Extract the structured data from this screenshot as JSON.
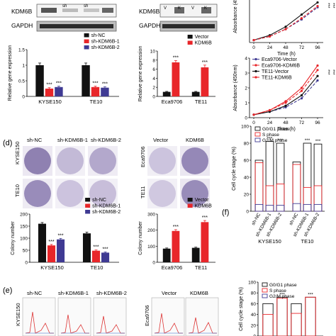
{
  "panel_labels": [
    "(d)",
    "(e)",
    "(f)"
  ],
  "western_blots": [
    {
      "rows": [
        "KDM6B",
        "GAPDH"
      ],
      "lanes": [
        "",
        "sh",
        "sh",
        ""
      ]
    },
    {
      "rows": [
        "KDM6B",
        "GAPDH"
      ],
      "lanes": [
        "V",
        "K",
        "V",
        "K"
      ]
    }
  ],
  "colony_images": {
    "left": {
      "headers": [
        "sh-NC",
        "sh-KDM6B-1",
        "sh-KDM6B-2"
      ],
      "rows": [
        "KYSE150",
        "TE10"
      ]
    },
    "right": {
      "headers": [
        "Vector",
        "KDM6B"
      ],
      "rows": [
        "Eca9706",
        "TE11"
      ]
    }
  },
  "flow_images": {
    "left": {
      "headers": [
        "sh-NC",
        "sh-KDM6B-1",
        "sh-KDM6B-2"
      ],
      "rows": [
        "KYSE150"
      ]
    },
    "right": {
      "headers": [
        "Vector",
        "KDM6B"
      ],
      "rows": [
        "Eca9706"
      ]
    }
  },
  "colors": {
    "black": "#111111",
    "red": "#e8262a",
    "blue": "#3f3a93",
    "dark": "#1a1a1a"
  },
  "chart_data": [
    {
      "id": "expr-sh",
      "type": "bar",
      "ylabel": "Relative gene expression",
      "ylim": [
        0,
        1.5
      ],
      "yticks": [
        0,
        0.5,
        1.0,
        1.5
      ],
      "categories": [
        "KYSE150",
        "TE10"
      ],
      "legend": [
        "sh-NC",
        "sh-KDM6B-1",
        "sh-KDM6B-2"
      ],
      "series": [
        {
          "name": "sh-NC",
          "values": [
            1.0,
            1.0
          ],
          "err": [
            0.07,
            0.07
          ]
        },
        {
          "name": "sh-KDM6B-1",
          "values": [
            0.25,
            0.3
          ],
          "err": [
            0.03,
            0.03
          ]
        },
        {
          "name": "sh-KDM6B-2",
          "values": [
            0.3,
            0.28
          ],
          "err": [
            0.03,
            0.03
          ]
        }
      ],
      "annotations": [
        "***",
        "***",
        "***",
        "***"
      ]
    },
    {
      "id": "expr-oe",
      "type": "bar",
      "ylabel": "Relative gene expression",
      "ylim": [
        0,
        10
      ],
      "yticks": [
        0,
        2,
        4,
        6,
        8,
        10
      ],
      "categories": [
        "Eca9706",
        "TE11"
      ],
      "legend": [
        "Vector",
        "KDM6B"
      ],
      "series": [
        {
          "name": "Vector",
          "values": [
            1.0,
            1.0
          ],
          "err": [
            0.1,
            0.1
          ]
        },
        {
          "name": "KDM6B",
          "values": [
            7.5,
            6.4
          ],
          "err": [
            0.4,
            0.5
          ]
        }
      ],
      "annotations": [
        "***",
        "***"
      ]
    },
    {
      "id": "growth-top",
      "type": "line",
      "ylabel": "Absorbance (45",
      "xlabel": "Time (h)",
      "x": [
        0,
        24,
        48,
        72,
        96
      ],
      "xticks": [
        0,
        24,
        48,
        72,
        96
      ],
      "ylim": [
        0,
        3.5
      ],
      "series": [
        {
          "values": [
            0.2,
            0.6,
            1.3,
            2.3,
            3.3
          ]
        },
        {
          "values": [
            0.2,
            0.5,
            1.1,
            1.9,
            2.9
          ]
        },
        {
          "values": [
            0.2,
            0.5,
            1.1,
            2.0,
            3.0
          ]
        }
      ],
      "annotations": [
        "***",
        "***"
      ]
    },
    {
      "id": "growth-bottom",
      "type": "line",
      "ylabel": "Absorbance (450nm)",
      "xlabel": "Time (h)",
      "x": [
        0,
        24,
        48,
        72,
        96
      ],
      "xticks": [
        0,
        24,
        48,
        72,
        96
      ],
      "ylim": [
        0,
        4
      ],
      "yticks": [
        0,
        1,
        2,
        3,
        4
      ],
      "series": [
        {
          "name": "Eca9706-Vector",
          "values": [
            0.2,
            0.4,
            0.7,
            1.3,
            2.5
          ]
        },
        {
          "name": "Eca9706-KDM6B",
          "values": [
            0.2,
            0.5,
            1.0,
            1.8,
            3.2
          ]
        },
        {
          "name": "TE11-Vector",
          "values": [
            0.2,
            0.4,
            0.8,
            1.5,
            2.8
          ]
        },
        {
          "name": "TE11-KDM6B",
          "values": [
            0.2,
            0.5,
            1.1,
            2.0,
            3.5
          ]
        }
      ],
      "annotations": [
        "***",
        "***"
      ]
    },
    {
      "id": "colony-sh",
      "type": "bar",
      "ylabel": "Colony number",
      "ylim": [
        0,
        200
      ],
      "yticks": [
        0,
        50,
        100,
        150,
        200
      ],
      "categories": [
        "KYSE150",
        "TE10"
      ],
      "legend": [
        "sh-NC",
        "sh-KDM6B-1",
        "sh-KDM6B-2"
      ],
      "series": [
        {
          "name": "sh-NC",
          "values": [
            160,
            120
          ],
          "err": [
            5,
            5
          ]
        },
        {
          "name": "sh-KDM6B-1",
          "values": [
            70,
            48
          ],
          "err": [
            4,
            3
          ]
        },
        {
          "name": "sh-KDM6B-2",
          "values": [
            95,
            40
          ],
          "err": [
            4,
            3
          ]
        }
      ],
      "annotations": [
        "***",
        "***",
        "***",
        "***"
      ]
    },
    {
      "id": "colony-oe",
      "type": "bar",
      "ylabel": "Colony number",
      "ylim": [
        0,
        300
      ],
      "yticks": [
        0,
        100,
        200,
        300
      ],
      "categories": [
        "Eca9706",
        "TE11"
      ],
      "legend": [
        "Vector",
        "KDM6B"
      ],
      "series": [
        {
          "name": "Vector",
          "values": [
            85,
            90
          ],
          "err": [
            4,
            4
          ]
        },
        {
          "name": "KDM6B",
          "values": [
            195,
            250
          ],
          "err": [
            8,
            10
          ]
        }
      ],
      "annotations": [
        "***",
        "***"
      ]
    },
    {
      "id": "cycle-sh",
      "type": "bar",
      "ylabel": "Cell cycle stage (%)",
      "ylim": [
        0,
        100
      ],
      "yticks": [
        0,
        20,
        40,
        60,
        80,
        100
      ],
      "categories": [
        "sh-NC",
        "sh-KDM6B-1",
        "sh-KDM6B-2",
        "sh-NC",
        "sh-KDM6B-1",
        "sh-KDM6B-2"
      ],
      "groups": [
        "KYSE150",
        "TE10"
      ],
      "legend": [
        "G0/G1 phase",
        "S phase",
        "G2/M phase"
      ],
      "series": [
        {
          "name": "G0/G1 phase",
          "values": [
            60,
            82,
            80,
            58,
            80,
            79
          ]
        },
        {
          "name": "S phase",
          "values": [
            57,
            30,
            32,
            55,
            28,
            30
          ]
        },
        {
          "name": "G2/M phase",
          "values": [
            8,
            7,
            7,
            9,
            8,
            8
          ]
        }
      ],
      "annotations": [
        "***",
        "***",
        "***",
        "***"
      ]
    },
    {
      "id": "cycle-oe",
      "type": "bar",
      "ylabel": "Cell cycle stage (%)",
      "ylim": [
        0,
        100
      ],
      "yticks": [
        0,
        20,
        40,
        60,
        80,
        100
      ],
      "categories": [
        "",
        "",
        "",
        ""
      ],
      "legend": [
        "G0/G1 phase",
        "S phase",
        "G2/M phase"
      ],
      "series": [
        {
          "name": "G0/G1 phase",
          "values": [
            60,
            72,
            60,
            72
          ]
        },
        {
          "name": "S phase",
          "values": [
            40,
            70,
            42,
            72
          ]
        }
      ],
      "annotations": [
        "***",
        "***"
      ]
    }
  ]
}
